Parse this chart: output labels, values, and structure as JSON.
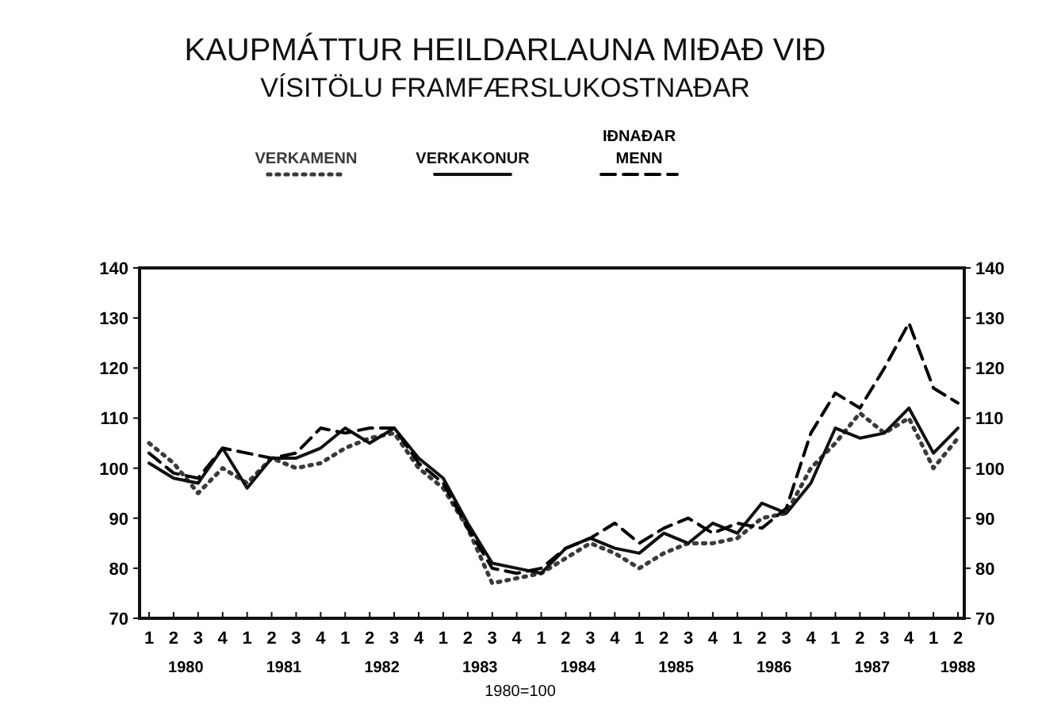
{
  "chart_data": {
    "type": "line",
    "title": "KAUPMÁTTUR HEILDARLAUNA MIÐAÐ VIÐ",
    "subtitle": "VÍSITÖLU FRAMFÆRSLUKOSTNAÐAR",
    "categories": [
      "1",
      "2",
      "3",
      "4",
      "1",
      "2",
      "3",
      "4",
      "1",
      "2",
      "3",
      "4",
      "1",
      "2",
      "3",
      "4",
      "1",
      "2",
      "3",
      "4",
      "1",
      "2",
      "3",
      "4",
      "1",
      "2",
      "3",
      "4",
      "1",
      "2",
      "3",
      "4",
      "1",
      "2"
    ],
    "series": [
      {
        "name": "VERKAMENN",
        "color": "#3a3a3a",
        "line_style": "dotted",
        "values": [
          105,
          101,
          95,
          100,
          97,
          102,
          100,
          101,
          104,
          106,
          107,
          100,
          96,
          88,
          77,
          78,
          79,
          82,
          85,
          83,
          80,
          83,
          85,
          85,
          86,
          90,
          91,
          100,
          105,
          111,
          107,
          110,
          100,
          106
        ]
      },
      {
        "name": "VERKAKONUR",
        "color": "#111111",
        "line_style": "solid",
        "values": [
          101,
          98,
          97,
          104,
          96,
          102,
          102,
          104,
          108,
          105,
          108,
          102,
          98,
          89,
          81,
          80,
          79,
          84,
          86,
          84,
          83,
          87,
          85,
          89,
          87,
          93,
          91,
          97,
          108,
          106,
          107,
          112,
          103,
          108
        ]
      },
      {
        "name": "IÐNAÐAR MENN",
        "color": "#000000",
        "line_style": "dashed",
        "values": [
          103,
          99,
          98,
          104,
          103,
          102,
          103,
          108,
          107,
          108,
          108,
          101,
          97,
          88,
          80,
          79,
          80,
          84,
          86,
          89,
          85,
          88,
          90,
          87,
          89,
          88,
          92,
          107,
          115,
          112,
          120,
          129,
          116,
          113
        ]
      }
    ],
    "ylim": [
      70,
      140
    ],
    "yticks": [
      70,
      80,
      90,
      100,
      110,
      120,
      130,
      140
    ],
    "y2lim": [
      70,
      140
    ],
    "y2ticks": [
      70,
      80,
      90,
      100,
      110,
      120,
      130,
      140
    ],
    "legend": "top",
    "grid": false,
    "annotations": [
      "1980",
      "1981",
      "1982",
      "1983",
      "1984",
      "1985",
      "1986",
      "1987",
      "1988",
      "1980=100"
    ]
  }
}
